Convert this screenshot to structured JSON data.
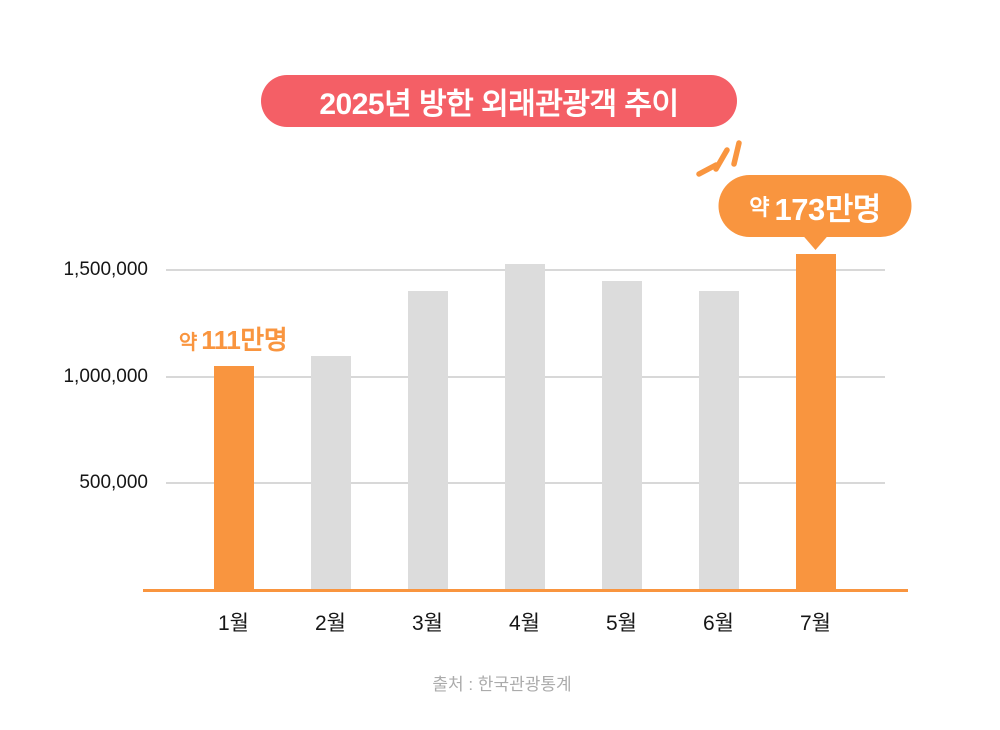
{
  "title": {
    "text": "2025년 방한 외래관광객 추이"
  },
  "colors": {
    "accent_orange": "#F9953F",
    "title_badge_red": "#F45F66",
    "bar_gray": "#DCDCDC",
    "gridline_gray": "#D8D8D8",
    "tick_text": "#161616",
    "source_text": "#ABABAB",
    "bubble_text": "#FFFFFF"
  },
  "chart_data": {
    "type": "bar",
    "title": "2025년 방한 외래관광객 추이",
    "categories": [
      "1월",
      "2월",
      "3월",
      "4월",
      "5월",
      "6월",
      "7월"
    ],
    "values": [
      1050000,
      1095000,
      1400000,
      1527000,
      1450000,
      1400000,
      1575000
    ],
    "bar_colors": [
      "accent",
      "gray",
      "gray",
      "gray",
      "gray",
      "gray",
      "accent"
    ],
    "xlabel": "",
    "ylabel": "",
    "ylim": [
      0,
      1600000
    ],
    "yticks": [
      {
        "value": 500000,
        "label": "500,000"
      },
      {
        "value": 1000000,
        "label": "1,000,000"
      },
      {
        "value": 1500000,
        "label": "1,500,000"
      }
    ],
    "grid": true,
    "legend": false,
    "annotations": [
      {
        "style": "plain-text",
        "target_category": "1월",
        "prefix": "약",
        "value_text": "111만명",
        "full_text": "약 111만명"
      },
      {
        "style": "speech-bubble",
        "target_category": "7월",
        "prefix": "약",
        "value_text": "173만명",
        "full_text": "약 173만명",
        "decoration": "emphasis-sparkle-strokes"
      }
    ]
  },
  "source": {
    "text": "출처 : 한국관광통계"
  }
}
